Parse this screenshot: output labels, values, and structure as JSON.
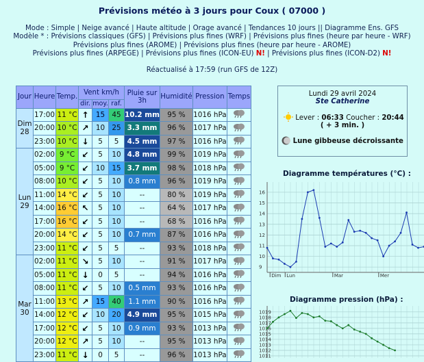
{
  "header": {
    "title": "Prévisions météo à 3 jours pour Coux ( 07000 )",
    "nav": [
      [
        {
          "text": "Mode : Simple | Neige avancé | Haute altitude | Orage avancé | Tendances 10 jours || Diagramme Ens. GFS",
          "color": "#102050"
        }
      ],
      [
        {
          "text": "Modèle * : Prévisions classiques (GFS) | Prévisions plus fines (WRF) | Prévisions plus fines (heure par heure - WRF)",
          "color": "#102050"
        }
      ],
      [
        {
          "text": "Prévisions plus fines (AROME) | Prévisions plus fines (heure par heure - AROME)",
          "color": "#102050"
        }
      ],
      [
        {
          "text": "Prévisions plus fines (ARPEGE) | Prévisions plus fines (ICON-EU) ",
          "color": "#102050"
        },
        {
          "text": "N!",
          "color": "#dd0000"
        },
        {
          "text": " | Prévisions plus fines (ICON-D2) ",
          "color": "#102050"
        },
        {
          "text": "N!",
          "color": "#dd0000"
        }
      ]
    ],
    "updated": "Réactualisé à 17:59 (run GFS de 12Z)"
  },
  "table": {
    "headers": {
      "day": "Jour",
      "time": "Heure",
      "temp": "Temp.",
      "wind": "Vent km/h",
      "dir": "dir.",
      "moy": "moy.",
      "raf": "raf.",
      "rain": "Pluie sur 3h",
      "hum": "Humidité",
      "pres": "Pression",
      "sky": "Temps"
    },
    "days": [
      {
        "name": "Dim",
        "num": "28",
        "rows": [
          [
            "17:00",
            "11 °C",
            "↑",
            "15",
            "45",
            "10.2 mm",
            "95 %",
            "1016 hPa"
          ],
          [
            "20:00",
            "10 °C",
            "↗",
            "10",
            "25",
            "3.3 mm",
            "96 %",
            "1017 hPa"
          ],
          [
            "23:00",
            "10 °C",
            "↓",
            "5",
            "5",
            "4.5 mm",
            "97 %",
            "1016 hPa"
          ]
        ]
      },
      {
        "name": "Lun",
        "num": "29",
        "rows": [
          [
            "02:00",
            "9 °C",
            "↙",
            "5",
            "10",
            "4.8 mm",
            "99 %",
            "1019 hPa"
          ],
          [
            "05:00",
            "9 °C",
            "↙",
            "10",
            "15",
            "3.7 mm",
            "98 %",
            "1018 hPa"
          ],
          [
            "08:00",
            "10 °C",
            "↙",
            "5",
            "10",
            "0.8 mm",
            "96 %",
            "1019 hPa"
          ],
          [
            "11:00",
            "14 °C",
            "↙",
            "5",
            "10",
            "--",
            "80 %",
            "1019 hPa"
          ],
          [
            "14:00",
            "16 °C",
            "↖",
            "5",
            "10",
            "--",
            "64 %",
            "1017 hPa"
          ],
          [
            "17:00",
            "16 °C",
            "↙",
            "5",
            "10",
            "--",
            "68 %",
            "1016 hPa"
          ],
          [
            "20:00",
            "14 °C",
            "↙",
            "5",
            "10",
            "0.7 mm",
            "87 %",
            "1016 hPa"
          ],
          [
            "23:00",
            "11 °C",
            "↙",
            "5",
            "5",
            "--",
            "93 %",
            "1018 hPa"
          ]
        ]
      },
      {
        "name": "Mar",
        "num": "30",
        "rows": [
          [
            "02:00",
            "11 °C",
            "↘",
            "5",
            "10",
            "--",
            "91 %",
            "1017 hPa"
          ],
          [
            "05:00",
            "11 °C",
            "↓",
            "0",
            "5",
            "--",
            "94 %",
            "1016 hPa"
          ],
          [
            "08:00",
            "11 °C",
            "↙",
            "5",
            "10",
            "0.5 mm",
            "93 %",
            "1016 hPa"
          ],
          [
            "11:00",
            "13 °C",
            "↗",
            "15",
            "40",
            "1.1 mm",
            "90 %",
            "1016 hPa"
          ],
          [
            "14:00",
            "12 °C",
            "↙",
            "10",
            "20",
            "4.9 mm",
            "95 %",
            "1015 hPa"
          ],
          [
            "17:00",
            "12 °C",
            "↙",
            "5",
            "10",
            "0.9 mm",
            "93 %",
            "1013 hPa"
          ],
          [
            "20:00",
            "12 °C",
            "↗",
            "5",
            "10",
            "--",
            "95 %",
            "1013 hPa"
          ],
          [
            "23:00",
            "11 °C",
            "↓",
            "0",
            "5",
            "--",
            "96 %",
            "1013 hPa"
          ]
        ]
      }
    ]
  },
  "sun": {
    "date": "Lundi 29 avril 2024",
    "saint": "Ste Catherine",
    "rise_label": "Lever : ",
    "rise": "06:33",
    "set_label": " Coucher : ",
    "set": "20:44",
    "delta": "( + 3 min. )",
    "moon": "Lune gibbeuse décroissante"
  },
  "temp_chart": {
    "title": "Diagramme températures (°C) :",
    "ylim": [
      8.5,
      16.7
    ],
    "yticks": [
      9,
      10,
      11,
      12,
      13,
      14,
      15,
      16
    ],
    "xlim": [
      0,
      27
    ],
    "xticks": [
      {
        "value": 0.5,
        "label": "Dim"
      },
      {
        "value": 3.1,
        "label": "Lun"
      },
      {
        "value": 11.3,
        "label": "Mar"
      },
      {
        "value": 19.2,
        "label": "Mer"
      }
    ],
    "color": "#1a3ab0",
    "values": [
      10.8,
      9.8,
      9.7,
      9.3,
      9.0,
      9.5,
      13.5,
      16.0,
      16.2,
      13.6,
      10.9,
      11.2,
      10.9,
      11.3,
      13.4,
      12.3,
      12.4,
      12.2,
      11.7,
      11.5,
      10.0,
      11.0,
      11.4,
      12.2,
      14.1,
      11.1,
      10.8,
      10.9
    ]
  },
  "pres_chart": {
    "title": "Diagramme pression (hPa) :",
    "ylim": [
      1010.5,
      1019.6
    ],
    "yticks": [
      1011,
      1012,
      1013,
      1014,
      1015,
      1016,
      1017,
      1018,
      1019
    ],
    "xlim": [
      0,
      27
    ],
    "color": "#1a7a2a",
    "values": [
      1016,
      1017.2,
      1018,
      1018.6,
      1019.2,
      1017.9,
      1018.8,
      1018.6,
      1018,
      1018.2,
      1017.4,
      1017.3,
      1016.6,
      1016,
      1016.6,
      1015.8,
      1015.4,
      1015,
      1014.2,
      1013.6,
      1013,
      1012.4,
      1012
    ]
  }
}
